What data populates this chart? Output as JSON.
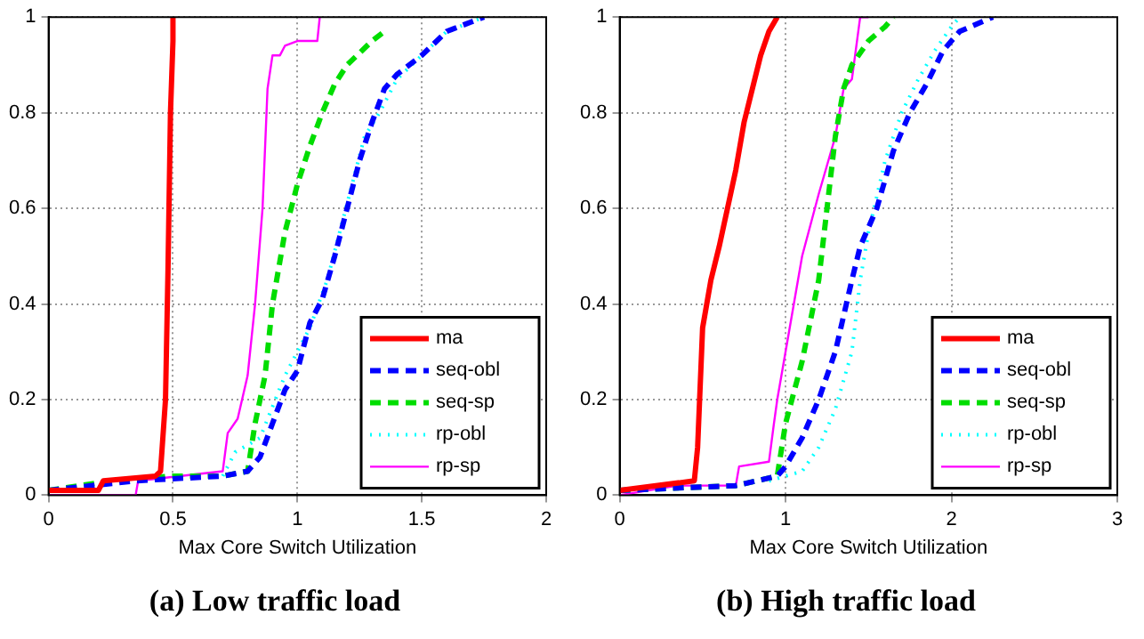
{
  "chart_data": [
    {
      "type": "line",
      "title": "(a) Low traffic load",
      "xlabel": "Max Core Switch Utilization",
      "xlim": [
        0,
        2
      ],
      "xticks": [
        0,
        0.5,
        1,
        1.5,
        2
      ],
      "ylim": [
        0,
        1
      ],
      "yticks": [
        0,
        0.2,
        0.4,
        0.6,
        0.8,
        1
      ],
      "grid": true,
      "legend": "bottom right",
      "series": [
        {
          "name": "ma",
          "color": "#ff0000",
          "line_style": "solid",
          "x": [
            0,
            0.2,
            0.22,
            0.43,
            0.45,
            0.47,
            0.48,
            0.49,
            0.5,
            0.5
          ],
          "values": [
            0.01,
            0.01,
            0.03,
            0.04,
            0.05,
            0.2,
            0.47,
            0.8,
            0.95,
            1
          ]
        },
        {
          "name": "seq-obl",
          "color": "#0000ff",
          "line_style": "dashed",
          "x": [
            0,
            0.35,
            0.7,
            0.8,
            0.85,
            0.9,
            0.95,
            1.0,
            1.05,
            1.1,
            1.15,
            1.2,
            1.25,
            1.3,
            1.35,
            1.4,
            1.5,
            1.6,
            1.7,
            1.75
          ],
          "values": [
            0.01,
            0.03,
            0.04,
            0.05,
            0.08,
            0.15,
            0.22,
            0.26,
            0.36,
            0.41,
            0.5,
            0.6,
            0.7,
            0.78,
            0.85,
            0.88,
            0.92,
            0.97,
            0.99,
            1
          ]
        },
        {
          "name": "seq-sp",
          "color": "#00dd00",
          "line_style": "dashed",
          "x": [
            0,
            0.25,
            0.5,
            0.7,
            0.8,
            0.83,
            0.87,
            0.9,
            0.95,
            1.0,
            1.05,
            1.1,
            1.15,
            1.2,
            1.3,
            1.35
          ],
          "values": [
            0.01,
            0.03,
            0.04,
            0.04,
            0.05,
            0.15,
            0.25,
            0.4,
            0.55,
            0.65,
            0.73,
            0.8,
            0.86,
            0.9,
            0.95,
            0.97
          ]
        },
        {
          "name": "rp-obl",
          "color": "#00ffff",
          "line_style": "dotted",
          "x": [
            0.7,
            0.75,
            0.85,
            0.95,
            1.05,
            1.12,
            1.17,
            1.22,
            1.27,
            1.33,
            1.4,
            1.5,
            1.6,
            1.75
          ],
          "values": [
            0.04,
            0.09,
            0.12,
            0.25,
            0.35,
            0.45,
            0.55,
            0.65,
            0.75,
            0.8,
            0.87,
            0.92,
            0.97,
            1
          ]
        },
        {
          "name": "rp-sp",
          "color": "#ff00ff",
          "line_style": "solid",
          "x": [
            0,
            0.35,
            0.36,
            0.7,
            0.72,
            0.76,
            0.8,
            0.83,
            0.86,
            0.88,
            0.9,
            0.93,
            0.95,
            1.0,
            1.08,
            1.09
          ],
          "values": [
            0,
            0,
            0.03,
            0.05,
            0.13,
            0.16,
            0.25,
            0.4,
            0.6,
            0.85,
            0.92,
            0.92,
            0.94,
            0.95,
            0.95,
            1
          ]
        }
      ]
    },
    {
      "type": "line",
      "title": "(b) High traffic load",
      "xlabel": "Max Core Switch Utilization",
      "xlim": [
        0,
        3
      ],
      "xticks": [
        0,
        1,
        2,
        3
      ],
      "ylim": [
        0,
        1
      ],
      "yticks": [
        0,
        0.2,
        0.4,
        0.6,
        0.8,
        1
      ],
      "grid": true,
      "legend": "bottom right",
      "series": [
        {
          "name": "ma",
          "color": "#ff0000",
          "line_style": "solid",
          "x": [
            0,
            0.45,
            0.47,
            0.5,
            0.55,
            0.6,
            0.65,
            0.7,
            0.75,
            0.8,
            0.85,
            0.9,
            0.95
          ],
          "values": [
            0.01,
            0.03,
            0.1,
            0.35,
            0.45,
            0.52,
            0.6,
            0.68,
            0.78,
            0.85,
            0.92,
            0.97,
            1
          ]
        },
        {
          "name": "seq-obl",
          "color": "#0000ff",
          "line_style": "dashed",
          "x": [
            0,
            0.7,
            0.95,
            1.0,
            1.1,
            1.2,
            1.3,
            1.4,
            1.45,
            1.55,
            1.65,
            1.75,
            1.85,
            1.95,
            2.05,
            2.25
          ],
          "values": [
            0.01,
            0.02,
            0.04,
            0.06,
            0.12,
            0.2,
            0.3,
            0.45,
            0.52,
            0.6,
            0.72,
            0.8,
            0.86,
            0.93,
            0.97,
            1
          ]
        },
        {
          "name": "seq-sp",
          "color": "#00dd00",
          "line_style": "dashed",
          "x": [
            0,
            0.7,
            0.95,
            1.0,
            1.1,
            1.2,
            1.25,
            1.3,
            1.35,
            1.4,
            1.5,
            1.6,
            1.65
          ],
          "values": [
            0.01,
            0.02,
            0.04,
            0.15,
            0.28,
            0.45,
            0.6,
            0.75,
            0.85,
            0.9,
            0.95,
            0.98,
            1
          ]
        },
        {
          "name": "rp-obl",
          "color": "#00ffff",
          "line_style": "dotted",
          "x": [
            0.9,
            1.1,
            1.2,
            1.3,
            1.4,
            1.45,
            1.5,
            1.6,
            1.7,
            1.8,
            1.9,
            2.0,
            2.05
          ],
          "values": [
            0.03,
            0.05,
            0.1,
            0.18,
            0.3,
            0.45,
            0.55,
            0.7,
            0.8,
            0.87,
            0.93,
            0.98,
            1
          ]
        },
        {
          "name": "rp-sp",
          "color": "#ff00ff",
          "line_style": "solid",
          "x": [
            0,
            0.35,
            0.7,
            0.72,
            0.9,
            0.93,
            0.95,
            1.0,
            1.05,
            1.1,
            1.2,
            1.3,
            1.35,
            1.4,
            1.45,
            1.5
          ],
          "values": [
            0,
            0.02,
            0.02,
            0.06,
            0.07,
            0.15,
            0.2,
            0.3,
            0.4,
            0.5,
            0.63,
            0.75,
            0.85,
            0.87,
            1,
            1
          ]
        }
      ]
    }
  ]
}
